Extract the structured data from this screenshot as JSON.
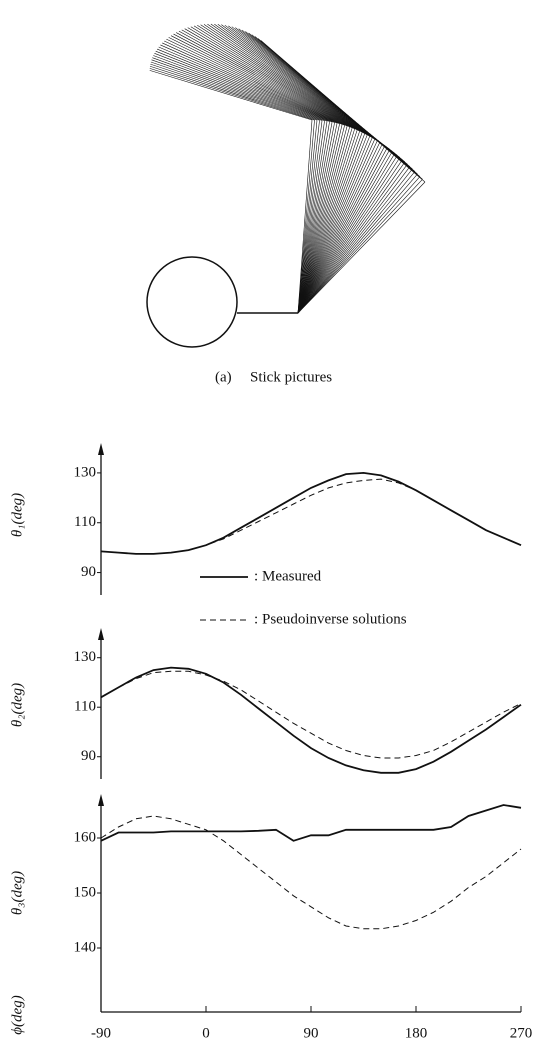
{
  "figure": {
    "caption_label": "(a)",
    "caption": "Stick pictures"
  },
  "chart_data": [
    {
      "type": "line",
      "y_label": "θ₁(deg)",
      "legend": true,
      "legend_separator": ":",
      "x": [
        -90,
        -75,
        -60,
        -45,
        -30,
        -15,
        0,
        15,
        30,
        45,
        60,
        75,
        90,
        105,
        120,
        135,
        150,
        165,
        180,
        195,
        210,
        225,
        240,
        255,
        270
      ],
      "xlim": [
        -90,
        270
      ],
      "ylim": [
        81,
        142
      ],
      "yticks": [
        90,
        110,
        130
      ],
      "series": [
        {
          "name": "Measured",
          "color": "#111111",
          "dash": false,
          "values": [
            98.5,
            98,
            97.5,
            97.5,
            98,
            99,
            101,
            104,
            108,
            112,
            116,
            120,
            124,
            127,
            129.5,
            130,
            129,
            126.5,
            123,
            119,
            115,
            111,
            107,
            104,
            101
          ]
        },
        {
          "name": "Pseudoinverse solutions",
          "color": "#111111",
          "dash": true,
          "values": [
            98.5,
            98,
            97.5,
            97.5,
            98,
            99,
            101,
            103.5,
            107,
            110.5,
            114,
            117.5,
            121,
            124,
            126,
            127,
            127.5,
            126,
            123,
            119,
            115,
            111,
            107,
            104,
            101
          ]
        }
      ]
    },
    {
      "type": "line",
      "y_label": "θ₂(deg)",
      "legend": false,
      "x": [
        -90,
        -75,
        -60,
        -45,
        -30,
        -15,
        0,
        15,
        30,
        45,
        60,
        75,
        90,
        105,
        120,
        135,
        150,
        165,
        180,
        195,
        210,
        225,
        240,
        255,
        270
      ],
      "xlim": [
        -90,
        270
      ],
      "ylim": [
        81,
        142
      ],
      "yticks": [
        90,
        110,
        130
      ],
      "series": [
        {
          "name": "Measured",
          "color": "#111111",
          "dash": false,
          "values": [
            114,
            118,
            122,
            125,
            126,
            125.5,
            123.5,
            120,
            115,
            109.5,
            104,
            98.5,
            93.5,
            89.5,
            86.5,
            84.5,
            83.5,
            83.5,
            85,
            88,
            92,
            96.5,
            101,
            106,
            111
          ]
        },
        {
          "name": "Pseudoinverse solutions",
          "color": "#111111",
          "dash": true,
          "values": [
            114,
            118,
            121.5,
            124,
            124.5,
            124.5,
            123,
            120.5,
            117,
            112.5,
            108,
            103.5,
            99.5,
            95.5,
            92.5,
            90.5,
            89.5,
            89.5,
            90.5,
            92.5,
            96,
            100,
            104,
            108,
            111.5
          ]
        }
      ]
    },
    {
      "type": "line",
      "y_label": "θ₃(deg)",
      "x_label": "ϕ(deg)",
      "legend": false,
      "x": [
        -90,
        -75,
        -60,
        -45,
        -30,
        -15,
        0,
        15,
        30,
        45,
        60,
        75,
        90,
        105,
        120,
        135,
        150,
        165,
        180,
        195,
        210,
        225,
        240,
        255,
        270
      ],
      "xlim": [
        -90,
        270
      ],
      "xticks": [
        -90,
        0,
        90,
        180,
        270
      ],
      "ylim": [
        137,
        168
      ],
      "yticks": [
        140,
        150,
        160
      ],
      "series": [
        {
          "name": "Measured",
          "color": "#111111",
          "dash": false,
          "values": [
            159.5,
            161,
            161,
            161,
            161.2,
            161.2,
            161.2,
            161.2,
            161.2,
            161.3,
            161.5,
            159.5,
            160.5,
            160.5,
            161.5,
            161.5,
            161.5,
            161.5,
            161.5,
            161.5,
            162,
            164,
            165,
            166,
            165.5
          ]
        },
        {
          "name": "Pseudoinverse solutions",
          "color": "#111111",
          "dash": true,
          "values": [
            160,
            162,
            163.5,
            164,
            163.5,
            162.5,
            161.5,
            159.5,
            157,
            154.5,
            152,
            149.5,
            147.5,
            145.5,
            144,
            143.5,
            143.5,
            144,
            145,
            146.5,
            148.5,
            151,
            153,
            155.5,
            158
          ]
        }
      ]
    }
  ]
}
